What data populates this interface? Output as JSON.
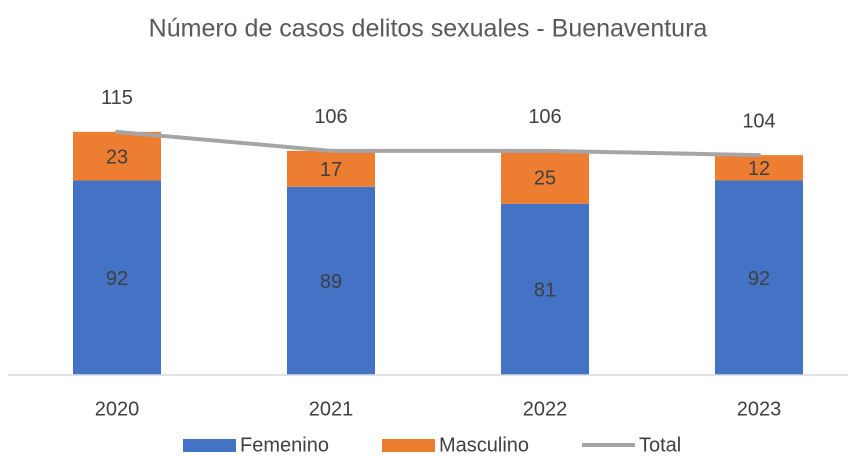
{
  "chart_data": {
    "type": "bar",
    "stacked": true,
    "title": "Número de casos delitos sexuales - Buenaventura",
    "categories": [
      "2020",
      "2021",
      "2022",
      "2023"
    ],
    "series": [
      {
        "name": "Femenino",
        "color": "#4472c4",
        "values": [
          92,
          89,
          81,
          92
        ]
      },
      {
        "name": "Masculino",
        "color": "#ed7d31",
        "values": [
          23,
          17,
          25,
          12
        ]
      },
      {
        "name": "Total",
        "type": "line",
        "color": "#a5a5a5",
        "values": [
          115,
          106,
          106,
          104
        ]
      }
    ],
    "ylim": [
      0,
      140
    ],
    "legend": "bottom"
  }
}
